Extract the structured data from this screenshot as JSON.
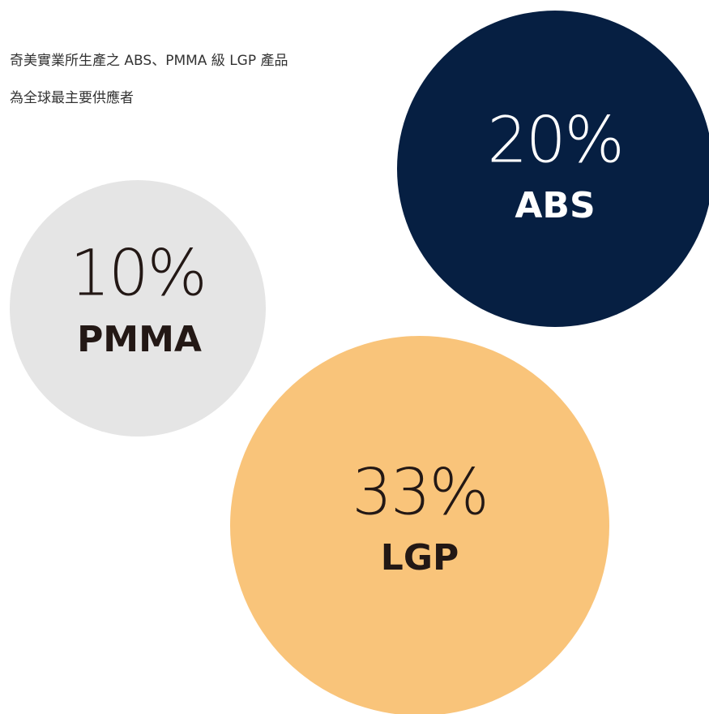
{
  "intro": [
    "奇美實業所生產之 ABS、PMMA 級 LGP 產品",
    "為全球最主要供應者"
  ],
  "bubbles": [
    {
      "percent": "20%",
      "label": "ABS"
    },
    {
      "percent": "10%",
      "label": "PMMA"
    },
    {
      "percent": "33%",
      "label": "LGP"
    }
  ]
}
